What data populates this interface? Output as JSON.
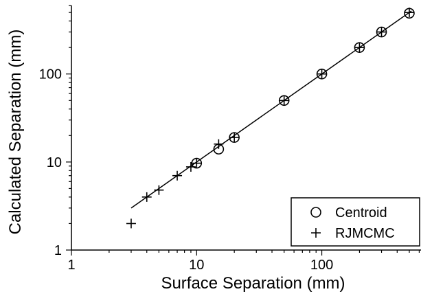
{
  "chart_data": {
    "type": "scatter",
    "title": "",
    "xlabel": "Surface Separation (mm)",
    "ylabel": "Calculated Separation (mm)",
    "xscale": "log",
    "yscale": "log",
    "xlim": [
      1,
      620
    ],
    "ylim": [
      1,
      600
    ],
    "x_ticks": [
      1,
      10,
      100
    ],
    "x_tick_labels": [
      "1",
      "10",
      "100"
    ],
    "y_ticks": [
      1,
      10,
      100
    ],
    "y_tick_labels": [
      "1",
      "10",
      "100"
    ],
    "grid": false,
    "legend_position": "bottom-right",
    "series": [
      {
        "name": "Centroid",
        "marker": "circle",
        "x": [
          10,
          15,
          20,
          50,
          100,
          200,
          300,
          500
        ],
        "y": [
          9.7,
          14,
          19,
          50,
          100,
          200,
          300,
          490
        ]
      },
      {
        "name": "RJMCMC",
        "marker": "plus",
        "x": [
          3,
          4,
          5,
          7,
          9,
          10,
          15,
          20,
          50,
          100,
          200,
          300,
          500
        ],
        "y": [
          2,
          4,
          4.8,
          7,
          8.8,
          9.7,
          16,
          19,
          50,
          100,
          200,
          300,
          500
        ]
      }
    ],
    "fit_line": {
      "x": [
        3,
        520
      ],
      "y": [
        3,
        520
      ]
    }
  }
}
